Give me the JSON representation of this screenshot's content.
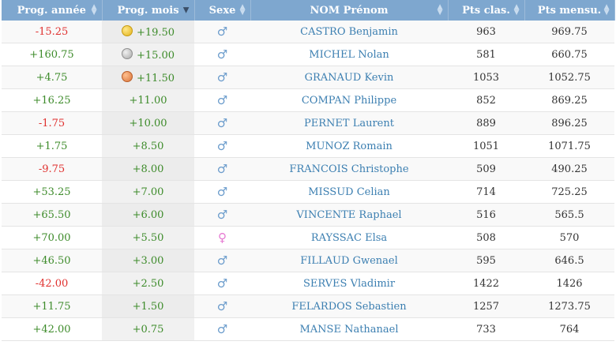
{
  "headers": {
    "prog_annee": "Prog. année",
    "prog_mois": "Prog. mois",
    "sexe": "Sexe",
    "nom_prenom": "NOM Prénom",
    "pts_clas": "Pts clas.",
    "pts_mensu": "Pts mensu."
  },
  "sort_icons": {
    "both": "▲▼",
    "desc": "▼"
  },
  "sex_glyphs": {
    "M": "♂",
    "F": "♀"
  },
  "colors": {
    "header_bg": "#7ea7cf",
    "negative": "#e0302e",
    "positive": "#3d8b2a",
    "link": "#3c7fb1",
    "male": "#6b9ccc",
    "female": "#e67ad2"
  },
  "rows": [
    {
      "prog_annee": "-15.25",
      "prog_mois": "+19.50",
      "medal": "gold",
      "sexe": "M",
      "nom": "CASTRO Benjamin",
      "pts_clas": "963",
      "pts_mensu": "969.75"
    },
    {
      "prog_annee": "+160.75",
      "prog_mois": "+15.00",
      "medal": "silver",
      "sexe": "M",
      "nom": "MICHEL Nolan",
      "pts_clas": "581",
      "pts_mensu": "660.75"
    },
    {
      "prog_annee": "+4.75",
      "prog_mois": "+11.50",
      "medal": "bronze",
      "sexe": "M",
      "nom": "GRANAUD Kevin",
      "pts_clas": "1053",
      "pts_mensu": "1052.75"
    },
    {
      "prog_annee": "+16.25",
      "prog_mois": "+11.00",
      "medal": "",
      "sexe": "M",
      "nom": "COMPAN Philippe",
      "pts_clas": "852",
      "pts_mensu": "869.25"
    },
    {
      "prog_annee": "-1.75",
      "prog_mois": "+10.00",
      "medal": "",
      "sexe": "M",
      "nom": "PERNET Laurent",
      "pts_clas": "889",
      "pts_mensu": "896.25"
    },
    {
      "prog_annee": "+1.75",
      "prog_mois": "+8.50",
      "medal": "",
      "sexe": "M",
      "nom": "MUNOZ Romain",
      "pts_clas": "1051",
      "pts_mensu": "1071.75"
    },
    {
      "prog_annee": "-9.75",
      "prog_mois": "+8.00",
      "medal": "",
      "sexe": "M",
      "nom": "FRANCOIS Christophe",
      "pts_clas": "509",
      "pts_mensu": "490.25"
    },
    {
      "prog_annee": "+53.25",
      "prog_mois": "+7.00",
      "medal": "",
      "sexe": "M",
      "nom": "MISSUD Celian",
      "pts_clas": "714",
      "pts_mensu": "725.25"
    },
    {
      "prog_annee": "+65.50",
      "prog_mois": "+6.00",
      "medal": "",
      "sexe": "M",
      "nom": "VINCENTE Raphael",
      "pts_clas": "516",
      "pts_mensu": "565.5"
    },
    {
      "prog_annee": "+70.00",
      "prog_mois": "+5.50",
      "medal": "",
      "sexe": "F",
      "nom": "RAYSSAC Elsa",
      "pts_clas": "508",
      "pts_mensu": "570"
    },
    {
      "prog_annee": "+46.50",
      "prog_mois": "+3.00",
      "medal": "",
      "sexe": "M",
      "nom": "FILLAUD Gwenael",
      "pts_clas": "595",
      "pts_mensu": "646.5"
    },
    {
      "prog_annee": "-42.00",
      "prog_mois": "+2.50",
      "medal": "",
      "sexe": "M",
      "nom": "SERVES Vladimir",
      "pts_clas": "1422",
      "pts_mensu": "1426"
    },
    {
      "prog_annee": "+11.75",
      "prog_mois": "+1.50",
      "medal": "",
      "sexe": "M",
      "nom": "FELARDOS Sebastien",
      "pts_clas": "1257",
      "pts_mensu": "1273.75"
    },
    {
      "prog_annee": "+42.00",
      "prog_mois": "+0.75",
      "medal": "",
      "sexe": "M",
      "nom": "MANSE Nathanael",
      "pts_clas": "733",
      "pts_mensu": "764"
    }
  ]
}
